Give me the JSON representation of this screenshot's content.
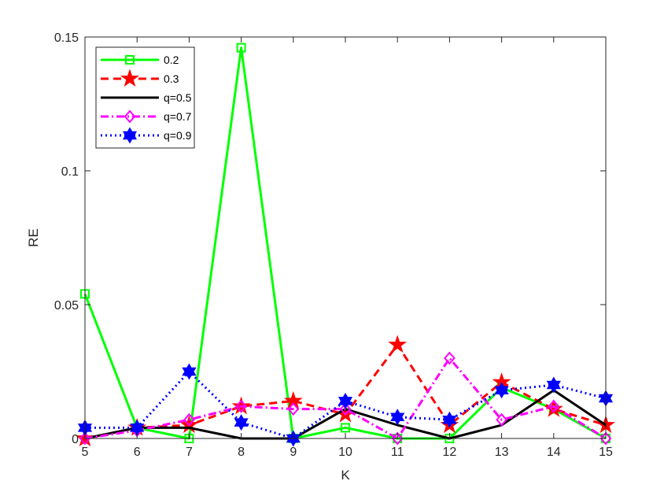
{
  "chart_data": {
    "type": "line",
    "title": "",
    "xlabel": "K",
    "ylabel": "RE",
    "xlim": [
      5,
      15
    ],
    "ylim": [
      0,
      0.15
    ],
    "x": [
      5,
      6,
      7,
      8,
      9,
      10,
      11,
      12,
      13,
      14,
      15
    ],
    "x_tick_labels": [
      "5",
      "6",
      "7",
      "8",
      "9",
      "10",
      "11",
      "12",
      "13",
      "14",
      "15"
    ],
    "y_ticks": [
      0,
      0.05,
      0.1,
      0.15
    ],
    "y_tick_labels": [
      "0",
      "0.05",
      "0.1",
      "0.15"
    ],
    "grid": false,
    "legend_position": "top-left",
    "series": [
      {
        "name": "0.2",
        "color": "#00ff00",
        "line_style": "solid",
        "marker": "square",
        "values": [
          0.054,
          0.004,
          0.0,
          0.146,
          0.0,
          0.004,
          0.0,
          0.0,
          0.019,
          0.011,
          0.0
        ]
      },
      {
        "name": "0.3",
        "color": "#ff0000",
        "line_style": "dashed",
        "marker": "pentagram",
        "values": [
          0.0,
          0.004,
          0.005,
          0.012,
          0.014,
          0.009,
          0.035,
          0.005,
          0.021,
          0.011,
          0.005
        ]
      },
      {
        "name": "q=0.5",
        "color": "#000000",
        "line_style": "solid",
        "marker": "none",
        "values": [
          0.0,
          0.004,
          0.004,
          0.0,
          0.0,
          0.011,
          0.005,
          0.0,
          0.005,
          0.018,
          0.005
        ]
      },
      {
        "name": "q=0.7",
        "color": "#ff00ff",
        "line_style": "dashdot",
        "marker": "diamond",
        "values": [
          0.0,
          0.003,
          0.007,
          0.012,
          0.011,
          0.011,
          0.0,
          0.03,
          0.007,
          0.012,
          0.0
        ]
      },
      {
        "name": "q=0.9",
        "color": "#0000ff",
        "line_style": "dotted",
        "marker": "hexagram",
        "values": [
          0.004,
          0.004,
          0.025,
          0.006,
          0.0,
          0.014,
          0.008,
          0.007,
          0.018,
          0.02,
          0.015
        ]
      }
    ]
  }
}
